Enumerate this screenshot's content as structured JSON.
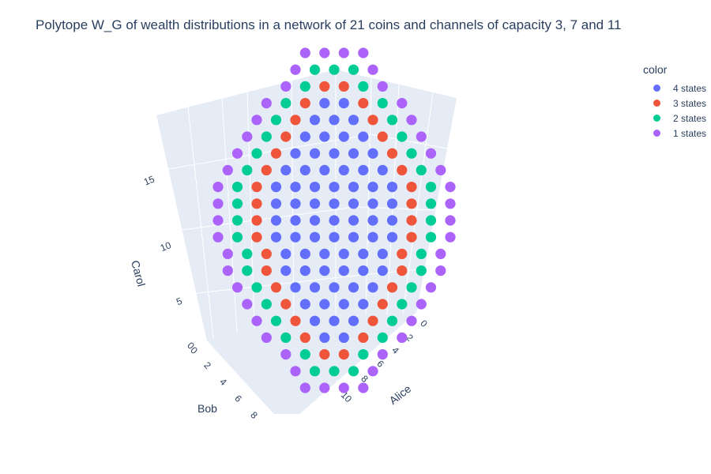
{
  "chart_data": {
    "type": "scatter3d",
    "title": "Polytope W_G of wealth distributions in a network of 21 coins and channels of capacity 3, 7 and 11",
    "legend": {
      "title": "color",
      "placement": "top-right",
      "entries": [
        {
          "label": "4 states",
          "color": "#636efa"
        },
        {
          "label": "3 states",
          "color": "#ef553b"
        },
        {
          "label": "2 states",
          "color": "#00cc96"
        },
        {
          "label": "1 states",
          "color": "#ab63fa"
        }
      ]
    },
    "axes": {
      "x": {
        "label": "Alice",
        "ticks": [
          "0",
          "2",
          "4",
          "6",
          "8",
          "10"
        ],
        "range": [
          0,
          11
        ]
      },
      "y": {
        "label": "Bob",
        "ticks": [
          "0",
          "2",
          "4",
          "6",
          "8"
        ],
        "range": [
          0,
          8
        ]
      },
      "z": {
        "label": "Carol",
        "ticks": [
          "0",
          "5",
          "10",
          "15"
        ],
        "range": [
          0,
          18
        ]
      }
    },
    "grid": true,
    "layers": [
      {
        "z": 0,
        "states": [
          1,
          1,
          1,
          1
        ]
      },
      {
        "z": 1,
        "states": [
          1,
          2,
          2,
          2,
          1
        ]
      },
      {
        "z": 2,
        "states": [
          1,
          2,
          3,
          3,
          2,
          1
        ]
      },
      {
        "z": 3,
        "states": [
          1,
          2,
          3,
          4,
          4,
          3,
          2,
          1
        ]
      },
      {
        "z": 4,
        "states": [
          1,
          2,
          3,
          4,
          4,
          4,
          3,
          2,
          1
        ]
      },
      {
        "z": 5,
        "states": [
          1,
          2,
          3,
          4,
          4,
          4,
          4,
          3,
          2,
          1
        ]
      },
      {
        "z": 6,
        "states": [
          1,
          2,
          3,
          4,
          4,
          4,
          4,
          4,
          3,
          2,
          1
        ]
      },
      {
        "z": 7,
        "states": [
          1,
          2,
          3,
          4,
          4,
          4,
          4,
          4,
          4,
          3,
          2,
          1
        ]
      },
      {
        "z": 8,
        "states": [
          1,
          2,
          3,
          4,
          4,
          4,
          4,
          4,
          4,
          3,
          2,
          1
        ]
      },
      {
        "z": 9,
        "states": [
          1,
          2,
          3,
          4,
          4,
          4,
          4,
          4,
          4,
          4,
          3,
          2,
          1
        ]
      },
      {
        "z": 10,
        "states": [
          1,
          2,
          3,
          4,
          4,
          4,
          4,
          4,
          4,
          4,
          3,
          2,
          1
        ]
      },
      {
        "z": 11,
        "states": [
          1,
          2,
          3,
          4,
          4,
          4,
          4,
          4,
          4,
          4,
          3,
          2,
          1
        ]
      },
      {
        "z": 12,
        "states": [
          1,
          2,
          3,
          4,
          4,
          4,
          4,
          4,
          4,
          4,
          3,
          2,
          1
        ]
      },
      {
        "z": 13,
        "states": [
          1,
          2,
          3,
          4,
          4,
          4,
          4,
          4,
          4,
          3,
          2,
          1
        ]
      },
      {
        "z": 14,
        "states": [
          1,
          2,
          3,
          4,
          4,
          4,
          4,
          4,
          3,
          2,
          1
        ]
      },
      {
        "z": 15,
        "states": [
          1,
          2,
          3,
          4,
          4,
          4,
          4,
          3,
          2,
          1
        ]
      },
      {
        "z": 16,
        "states": [
          1,
          2,
          3,
          4,
          4,
          4,
          3,
          2,
          1
        ]
      },
      {
        "z": 17,
        "states": [
          1,
          2,
          3,
          4,
          4,
          3,
          2,
          1
        ]
      },
      {
        "z": 18,
        "states": [
          1,
          2,
          3,
          3,
          2,
          1
        ]
      },
      {
        "z": 19,
        "states": [
          1,
          2,
          2,
          2,
          1
        ]
      },
      {
        "z": 20,
        "states": [
          1,
          1,
          1,
          1
        ]
      }
    ]
  }
}
